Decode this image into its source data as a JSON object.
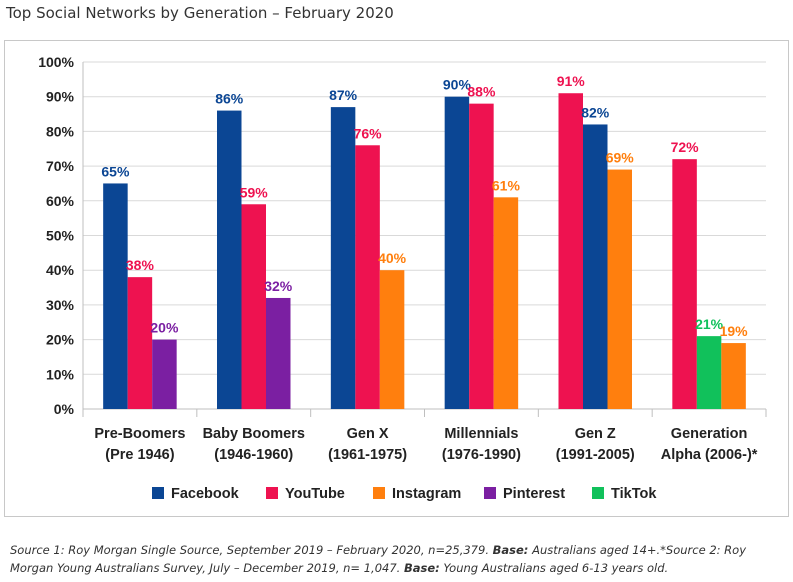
{
  "page": {
    "title": "Top Social Networks by Generation – February 2020"
  },
  "chart_data": {
    "type": "bar",
    "ylim": [
      0,
      100
    ],
    "yticks": [
      "0%",
      "10%",
      "20%",
      "30%",
      "40%",
      "50%",
      "60%",
      "70%",
      "80%",
      "90%",
      "100%"
    ],
    "grid": true,
    "legend_position": "bottom",
    "categories": [
      {
        "line1": "Pre-Boomers",
        "line2": "(Pre 1946)"
      },
      {
        "line1": "Baby Boomers",
        "line2": "(1946-1960)"
      },
      {
        "line1": "Gen X",
        "line2": "(1961-1975)"
      },
      {
        "line1": "Millennials",
        "line2": "(1976-1990)"
      },
      {
        "line1": "Gen Z",
        "line2": "(1991-2005)"
      },
      {
        "line1": "Generation",
        "line2": "Alpha (2006-)*"
      }
    ],
    "series": [
      {
        "name": "Facebook",
        "color": "#0b4694",
        "values": [
          65,
          86,
          87,
          90,
          82,
          null
        ]
      },
      {
        "name": "YouTube",
        "color": "#ee1250",
        "values": [
          38,
          59,
          76,
          88,
          91,
          72
        ]
      },
      {
        "name": "Instagram",
        "color": "#ff7f0e",
        "values": [
          null,
          null,
          40,
          61,
          69,
          19
        ]
      },
      {
        "name": "Pinterest",
        "color": "#7b1fa2",
        "values": [
          20,
          32,
          null,
          null,
          null,
          null
        ]
      },
      {
        "name": "TikTok",
        "color": "#11c15b",
        "values": [
          null,
          null,
          null,
          null,
          null,
          21
        ]
      }
    ],
    "bar_order": [
      [
        "Facebook",
        "YouTube",
        "Pinterest"
      ],
      [
        "Facebook",
        "YouTube",
        "Pinterest"
      ],
      [
        "Facebook",
        "YouTube",
        "Instagram"
      ],
      [
        "Facebook",
        "YouTube",
        "Instagram"
      ],
      [
        "YouTube",
        "Facebook",
        "Instagram"
      ],
      [
        "YouTube",
        "TikTok",
        "Instagram"
      ]
    ],
    "label_suffix": "%"
  },
  "footnote": {
    "part1": "Source 1: Roy Morgan Single Source, September 2019 – February 2020, n=25,379. ",
    "bold1": "Base:",
    "part2": " Australians aged 14+.*Source 2: Roy Morgan Young Australians Survey, July – December 2019, n= 1,047. ",
    "bold2": "Base:",
    "part3": " Young Australians aged 6-13 years old."
  }
}
